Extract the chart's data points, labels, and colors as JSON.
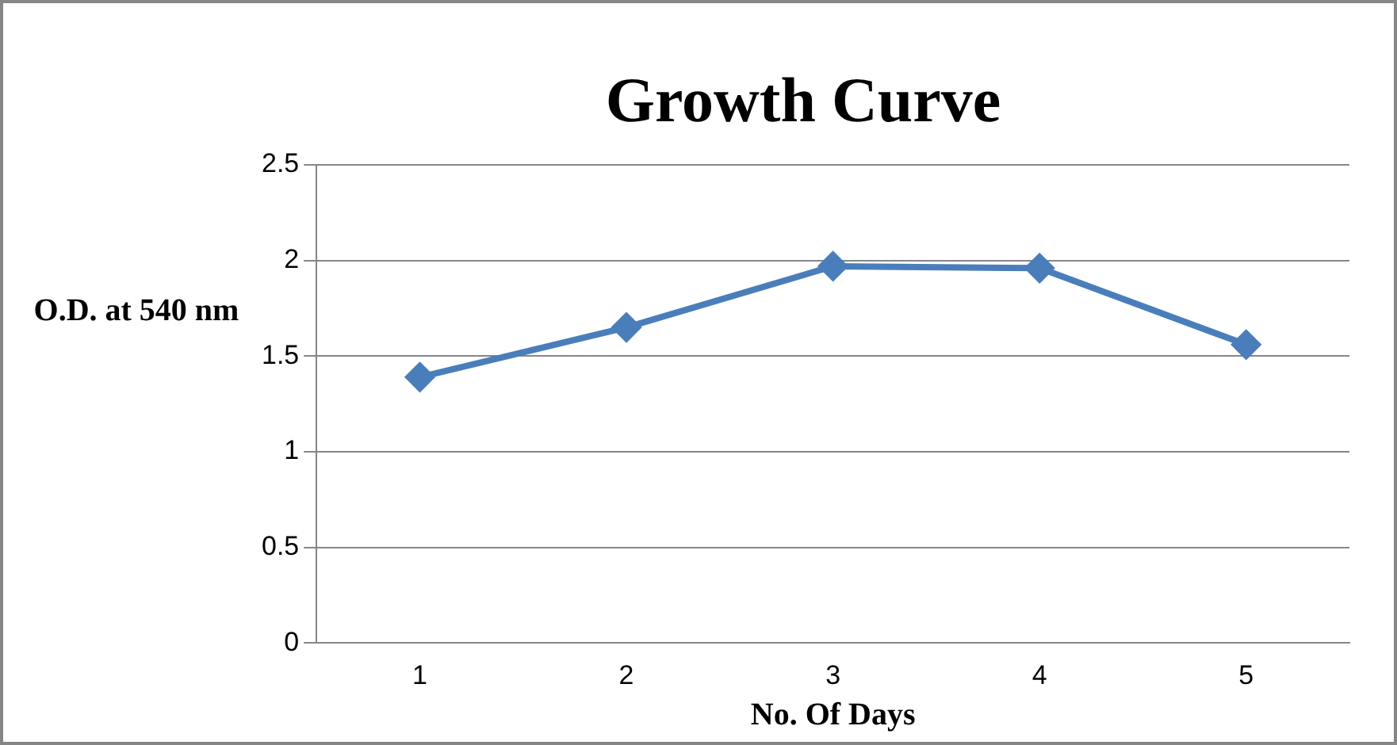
{
  "chart_data": {
    "type": "line",
    "title": "Growth Curve",
    "xlabel": "No. Of Days",
    "ylabel": "O.D. at 540 nm",
    "categories": [
      "1",
      "2",
      "3",
      "4",
      "5"
    ],
    "series": [
      {
        "color": "#4a7ebb",
        "values": [
          1.39,
          1.65,
          1.97,
          1.96,
          1.56
        ]
      }
    ],
    "ylim": [
      0,
      2.5
    ],
    "yticks": [
      0,
      0.5,
      1,
      1.5,
      2,
      2.5
    ],
    "grid": "y",
    "legend": false,
    "marker": "diamond",
    "line_style": "solid"
  }
}
